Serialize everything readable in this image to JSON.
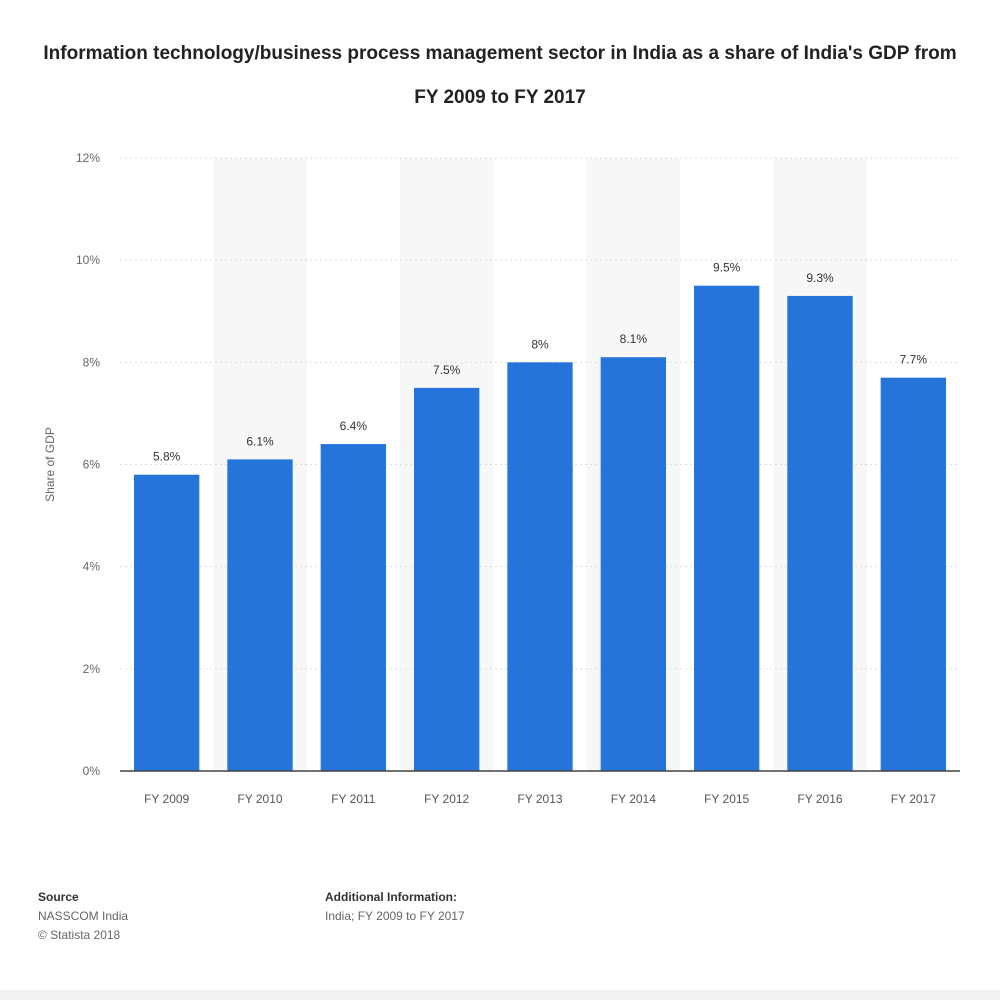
{
  "title": "Information technology/business process management sector in India as a share of India's GDP from FY 2009 to FY 2017",
  "chart_data": {
    "type": "bar",
    "categories": [
      "FY 2009",
      "FY 2010",
      "FY 2011",
      "FY 2012",
      "FY 2013",
      "FY 2014",
      "FY 2015",
      "FY 2016",
      "FY 2017"
    ],
    "values": [
      5.8,
      6.1,
      6.4,
      7.5,
      8.0,
      8.1,
      9.5,
      9.3,
      7.7
    ],
    "value_labels": [
      "5.8%",
      "6.1%",
      "6.4%",
      "7.5%",
      "8%",
      "8.1%",
      "9.5%",
      "9.3%",
      "7.7%"
    ],
    "ylabel": "Share of GDP",
    "ylim": [
      0,
      12
    ],
    "yticks": [
      0,
      2,
      4,
      6,
      8,
      10,
      12
    ],
    "ytick_labels": [
      "0%",
      "2%",
      "4%",
      "6%",
      "8%",
      "10%",
      "12%"
    ],
    "bar_color": "#2574d9",
    "grid": true
  },
  "footer": {
    "source_heading": "Source",
    "source_lines": [
      "NASSCOM India",
      "© Statista 2018"
    ],
    "info_heading": "Additional Information:",
    "info_lines": [
      "India; FY 2009 to FY 2017"
    ]
  }
}
